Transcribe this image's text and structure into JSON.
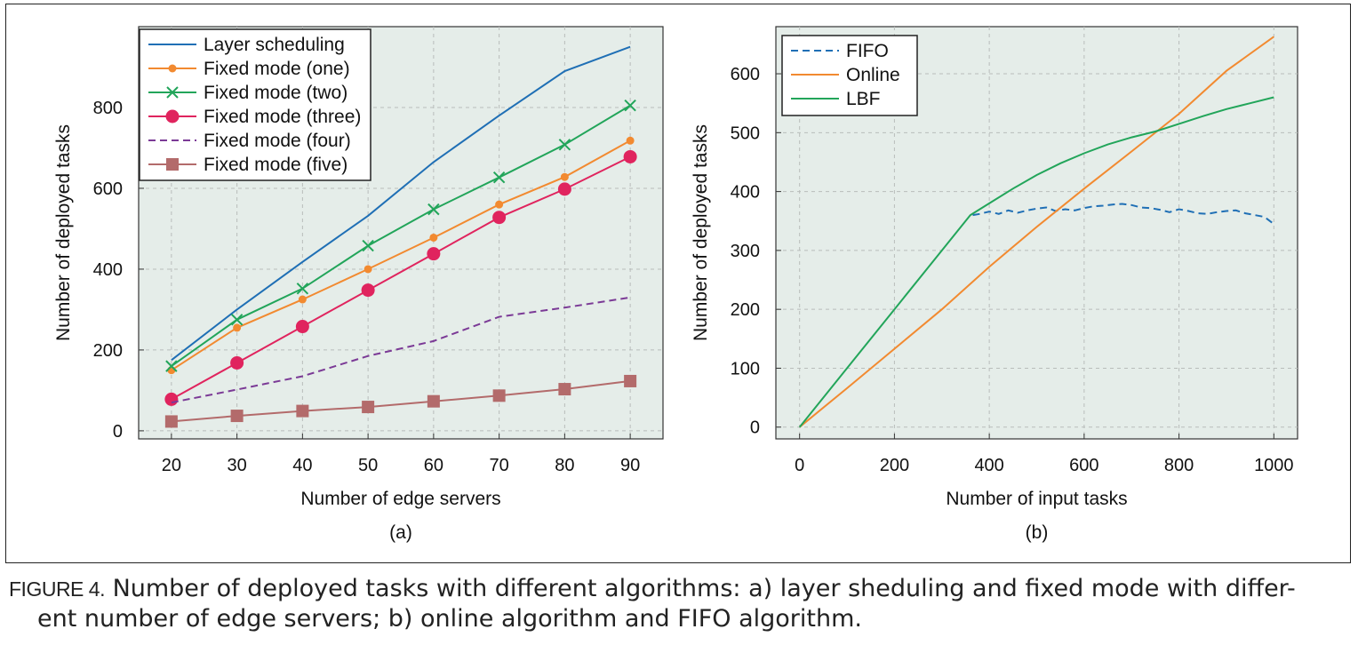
{
  "caption": {
    "label": "FIGURE 4.",
    "line1": "Number of deployed tasks with different algorithms: a) layer sheduling and fixed mode with differ-",
    "line2": "ent number of edge servers; b) online algorithm and FIFO algorithm."
  },
  "chart_data": [
    {
      "type": "line",
      "panel_label": "(a)",
      "xlabel": "Number of edge servers",
      "ylabel": "Number of deployed tasks",
      "x": [
        20,
        30,
        40,
        50,
        60,
        70,
        80,
        90
      ],
      "xlim": [
        15,
        95
      ],
      "ylim": [
        -20,
        1000
      ],
      "xticks": [
        20,
        30,
        40,
        50,
        60,
        70,
        80,
        90
      ],
      "yticks": [
        0,
        200,
        400,
        600,
        800
      ],
      "grid": true,
      "legend_position": "top-left",
      "series": [
        {
          "name": "Layer scheduling",
          "color": "#1f6fb5",
          "marker": "none",
          "dash": "solid",
          "values": [
            175,
            300,
            418,
            532,
            665,
            780,
            890,
            950
          ]
        },
        {
          "name": "Fixed mode (one)",
          "color": "#f28a30",
          "marker": "dot",
          "dash": "solid",
          "values": [
            150,
            255,
            325,
            400,
            478,
            560,
            628,
            718
          ]
        },
        {
          "name": "Fixed mode (two)",
          "color": "#22a55a",
          "marker": "x",
          "dash": "solid",
          "values": [
            160,
            275,
            352,
            458,
            548,
            627,
            708,
            805
          ]
        },
        {
          "name": "Fixed mode (three)",
          "color": "#e0245e",
          "marker": "bigdot",
          "dash": "solid",
          "values": [
            78,
            168,
            258,
            348,
            438,
            528,
            598,
            678
          ]
        },
        {
          "name": "Fixed mode (four)",
          "color": "#7b3a96",
          "marker": "none",
          "dash": "dashed",
          "values": [
            70,
            102,
            135,
            185,
            222,
            282,
            305,
            330
          ]
        },
        {
          "name": "Fixed mode (five)",
          "color": "#b36b6b",
          "marker": "square",
          "dash": "solid",
          "values": [
            23,
            37,
            49,
            59,
            73,
            87,
            103,
            123
          ]
        }
      ]
    },
    {
      "type": "line",
      "panel_label": "(b)",
      "xlabel": "Number of input tasks",
      "ylabel": "Number of deployed tasks",
      "xlim": [
        -50,
        1050
      ],
      "ylim": [
        -20,
        680
      ],
      "xticks": [
        0,
        200,
        400,
        600,
        800,
        1000
      ],
      "yticks": [
        0,
        100,
        200,
        300,
        400,
        500,
        600
      ],
      "grid": true,
      "legend_position": "top-left",
      "series": [
        {
          "name": "FIFO",
          "color": "#1f6fb5",
          "dash": "dashed",
          "x": [
            365,
            380,
            400,
            420,
            440,
            460,
            480,
            500,
            520,
            540,
            560,
            580,
            600,
            620,
            640,
            660,
            680,
            700,
            720,
            740,
            760,
            780,
            800,
            820,
            840,
            860,
            880,
            900,
            920,
            940,
            960,
            980,
            1000
          ],
          "y": [
            360,
            362,
            366,
            362,
            368,
            364,
            368,
            371,
            373,
            367,
            370,
            368,
            372,
            375,
            376,
            378,
            379,
            377,
            373,
            372,
            369,
            365,
            370,
            367,
            363,
            362,
            365,
            367,
            368,
            363,
            360,
            357,
            345
          ]
        },
        {
          "name": "Online",
          "color": "#f28a30",
          "dash": "solid",
          "x": [
            0,
            100,
            200,
            300,
            400,
            500,
            600,
            700,
            800,
            900,
            1000
          ],
          "y": [
            0,
            66,
            133,
            200,
            272,
            340,
            405,
            468,
            532,
            605,
            663
          ]
        },
        {
          "name": "LBF",
          "color": "#22a55a",
          "dash": "solid",
          "x": [
            0,
            100,
            200,
            300,
            360,
            400,
            450,
            500,
            550,
            600,
            650,
            700,
            750,
            800,
            850,
            900,
            950,
            1000
          ],
          "y": [
            0,
            100,
            200,
            300,
            360,
            380,
            405,
            428,
            448,
            465,
            480,
            492,
            502,
            515,
            528,
            540,
            550,
            560
          ]
        }
      ]
    }
  ]
}
